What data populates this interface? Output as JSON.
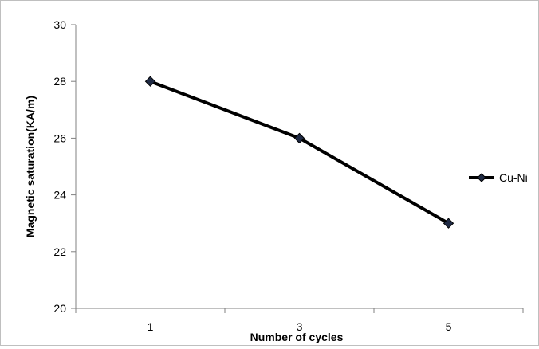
{
  "chart_data": {
    "type": "line",
    "x": [
      "1",
      "3",
      "5"
    ],
    "series": [
      {
        "name": "Cu-Ni",
        "values": [
          28,
          26,
          23
        ],
        "color": "#000000",
        "marker": "diamond"
      }
    ],
    "title": "",
    "xlabel": "Number of cycles",
    "ylabel": "Magnetic saturation(KA/m)",
    "ylim": [
      20,
      30
    ],
    "yticks": [
      "20",
      "22",
      "24",
      "26",
      "28",
      "30"
    ],
    "grid": false,
    "legend": "right"
  }
}
